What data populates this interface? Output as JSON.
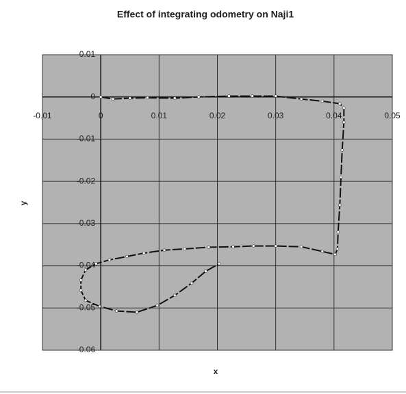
{
  "chart_data": {
    "type": "scatter-line",
    "title": "Effect of integrating odometry on Naji1",
    "x_label": "x",
    "y_label": "y",
    "xlim": [
      -0.01,
      0.05
    ],
    "xticks": [
      -0.01,
      0,
      0.01,
      0.02,
      0.03,
      0.04,
      0.05
    ],
    "ylim": [
      -0.06,
      0.01
    ],
    "yticks": [
      0.01,
      0,
      -0.01,
      -0.02,
      -0.03,
      -0.04,
      -0.05,
      -0.06
    ],
    "grid": true,
    "x": [
      0,
      0.0021,
      0.005,
      0.008,
      0.0127,
      0.0168,
      0.022,
      0.026,
      0.03,
      0.0344,
      0.038,
      0.041,
      0.0417,
      0.0417,
      0.0414,
      0.0412,
      0.041,
      0.0407,
      0.0406,
      0.0402,
      0.038,
      0.0344,
      0.03,
      0.0262,
      0.0227,
      0.0185,
      0.0144,
      0.0109,
      0.0074,
      0.0045,
      0.0015,
      -0.0008,
      -0.0026,
      -0.0034,
      -0.0034,
      -0.0026,
      -0.0002,
      0.0027,
      0.0062,
      0.0097,
      0.0127,
      0.0156,
      0.018,
      0.0203
    ],
    "series": [
      {
        "color": "#111111",
        "values": [
          0,
          -0.0005,
          -0.0003,
          -0.0002,
          -0.0003,
          0,
          0.0002,
          0.0002,
          0.0002,
          -0.0005,
          -0.001,
          -0.0016,
          -0.0026,
          -0.006,
          -0.0126,
          -0.019,
          -0.0256,
          -0.032,
          -0.036,
          -0.0373,
          -0.0366,
          -0.0355,
          -0.0353,
          -0.0353,
          -0.0355,
          -0.0356,
          -0.036,
          -0.0363,
          -0.037,
          -0.0378,
          -0.0386,
          -0.0395,
          -0.041,
          -0.0434,
          -0.0458,
          -0.0482,
          -0.0496,
          -0.0507,
          -0.051,
          -0.0494,
          -0.047,
          -0.0441,
          -0.0413,
          -0.0395
        ]
      }
    ]
  }
}
